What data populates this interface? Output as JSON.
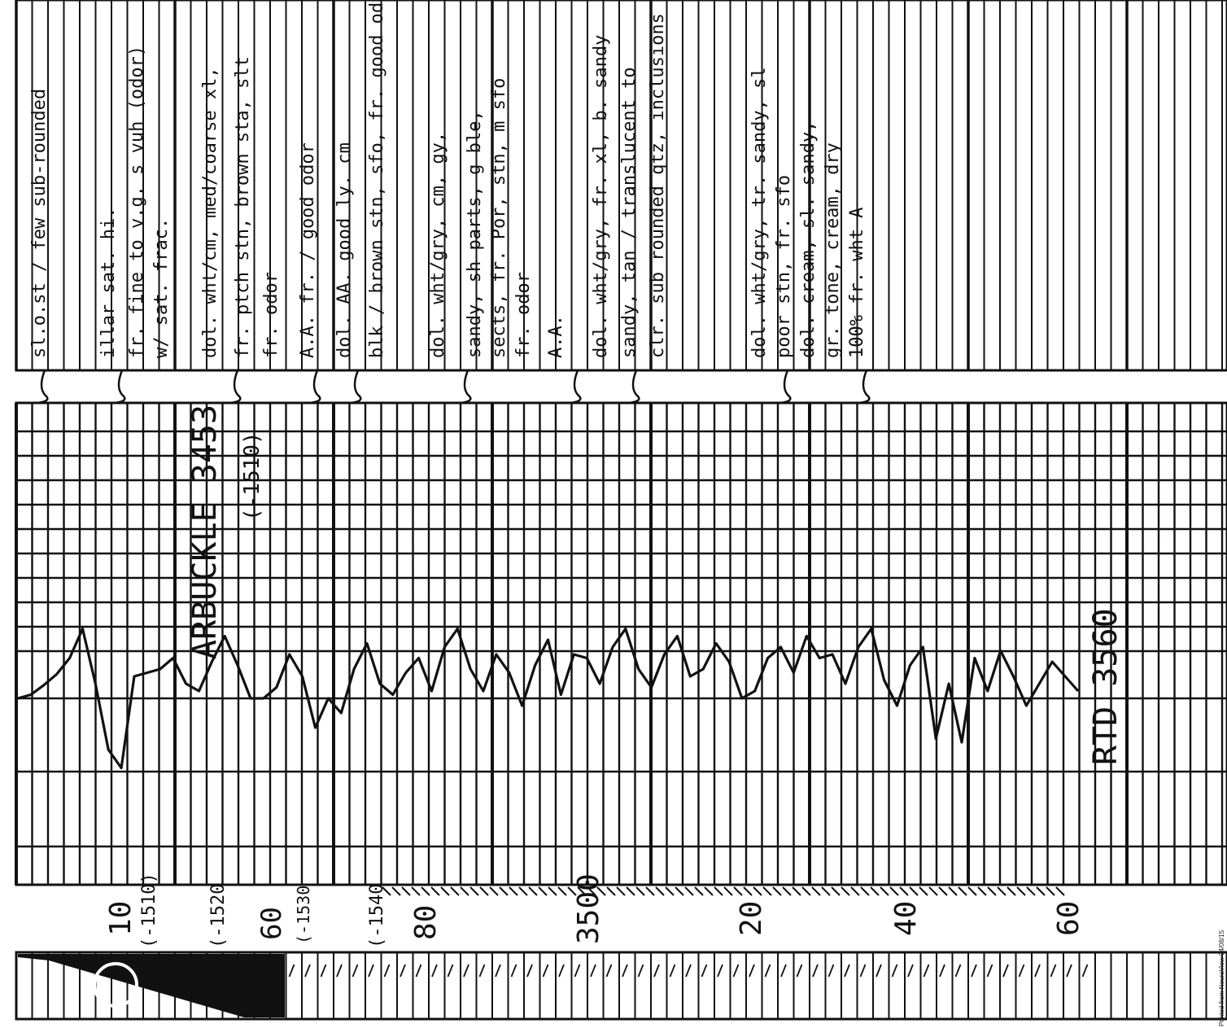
{
  "document": {
    "type": "scanned well log strip (rotated)",
    "footer": "Printed from NeuraView 04/08/15"
  },
  "depth_labels": [
    {
      "text": "10",
      "row": 1
    },
    {
      "text": "(-1510)",
      "row": 1
    },
    {
      "text": "(-1520",
      "row": 2
    },
    {
      "text": "60",
      "row": 3
    },
    {
      "text": "(-1530",
      "row": 3
    },
    {
      "text": "(-1540",
      "row": 4
    },
    {
      "text": "80",
      "row": 4
    },
    {
      "text": "3500",
      "row": 5
    },
    {
      "text": "20",
      "row": 6
    },
    {
      "text": "40",
      "row": 7
    },
    {
      "text": "60",
      "row": 8
    }
  ],
  "track_annotations": [
    {
      "text": "ARBUCKLE 3453",
      "kind": "formation top"
    },
    {
      "text": "(-1510)",
      "kind": "subsea"
    },
    {
      "text": "RTD 3560",
      "kind": "total depth"
    }
  ],
  "lithology_notes": [
    "sl.o.st / few sub-rounded",
    "illar sat. hi.",
    "fr. fine to v.g. s vuh (odor)",
    "w/ sat. frac.",
    "dol. wht/cm, med/coarse xl,",
    "fr. ptch stn, brown sta, slt",
    "fr. odor",
    "A.A. fr. / good odor",
    "dol. AA. good ly. cm",
    "blk / brown stn, sfo, fr. good odor",
    "dol. wht/gry, cm, gy,",
    "sandy, sh parts, g ble,",
    "sects, fr. Por, stn, m sfo",
    "fr. odor",
    "A.A.",
    "dol. wht/gry, fr. xl, b. sandy",
    "sandy, tan / translucent to",
    "clr. sub rounded qtz, inclusions",
    "dol. wht/gry, tr. sandy, sl",
    "poor stn, fr. sfo",
    "dol. cream, sl. sandy,",
    "gr. tone, cream, dry",
    "100% fr. wht A"
  ],
  "curve_values": [
    0.0,
    0.05,
    0.18,
    0.33,
    0.55,
    0.95,
    0.2,
    -0.7,
    -0.95,
    0.3,
    0.35,
    0.4,
    0.55,
    0.2,
    0.1,
    0.5,
    0.85,
    0.45,
    0.0,
    0.0,
    0.15,
    0.6,
    0.3,
    -0.4,
    0.0,
    -0.2,
    0.4,
    0.75,
    0.2,
    0.05,
    0.35,
    0.55,
    0.1,
    0.7,
    0.95,
    0.4,
    0.1,
    0.6,
    0.35,
    -0.1,
    0.45,
    0.8,
    0.05,
    0.6,
    0.55,
    0.2,
    0.7,
    0.95,
    0.4,
    0.15,
    0.6,
    0.85,
    0.3,
    0.4,
    0.75,
    0.5,
    0.0,
    0.1,
    0.55,
    0.7,
    0.35,
    0.85,
    0.55,
    0.6,
    0.2,
    0.7,
    0.95,
    0.25,
    -0.1,
    0.45,
    0.7,
    -0.55,
    0.2,
    -0.6,
    0.55,
    0.1,
    0.65,
    0.3,
    -0.1,
    0.2,
    0.5,
    0.3,
    0.1
  ]
}
